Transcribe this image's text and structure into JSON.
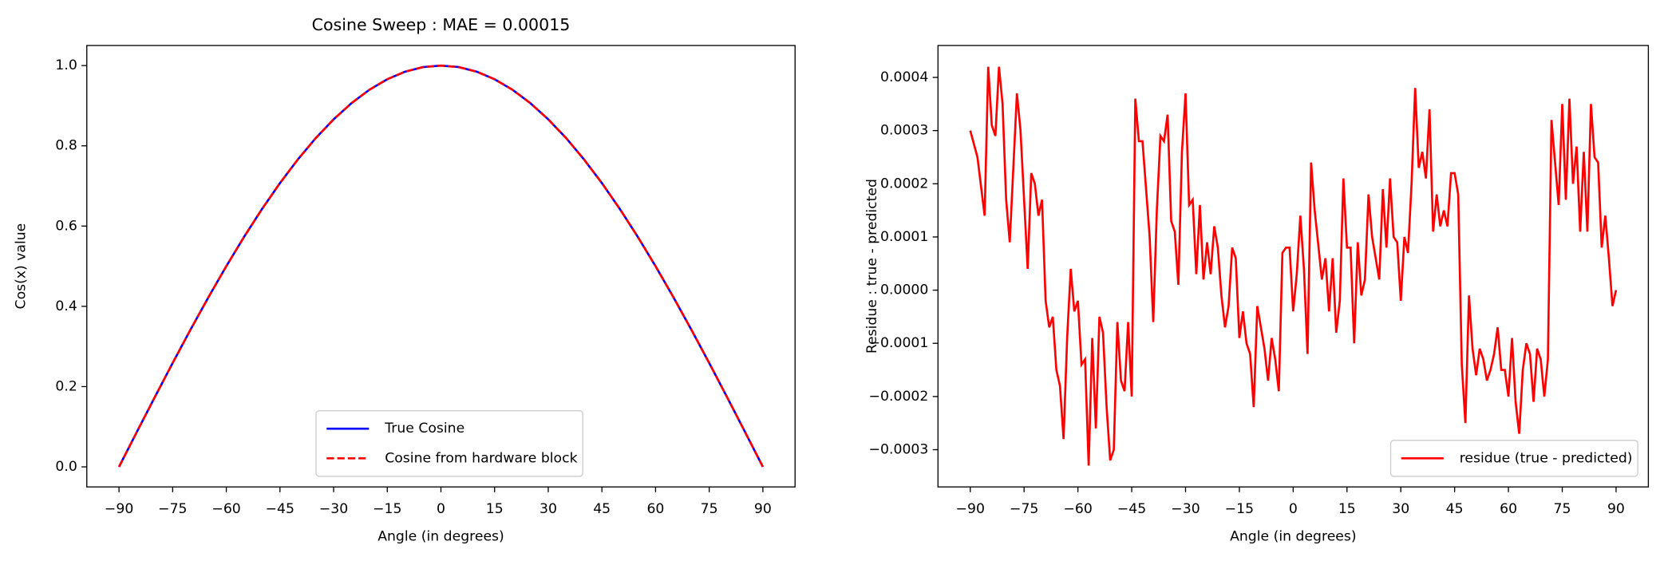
{
  "chart_data": [
    {
      "type": "line",
      "title": "Cosine Sweep : MAE = 0.00015",
      "x_label": "Angle (in degrees)",
      "y_label": "Cos(x) value",
      "x": [
        -90,
        -85,
        -80,
        -75,
        -70,
        -65,
        -60,
        -55,
        -50,
        -45,
        -40,
        -35,
        -30,
        -25,
        -20,
        -15,
        -10,
        -5,
        0,
        5,
        10,
        15,
        20,
        25,
        30,
        35,
        40,
        45,
        50,
        55,
        60,
        65,
        70,
        75,
        80,
        85,
        90
      ],
      "series": [
        {
          "name": "True Cosine",
          "color": "#0000ff",
          "dash": false,
          "values": [
            0,
            0.0872,
            0.1736,
            0.2588,
            0.342,
            0.4226,
            0.5,
            0.5736,
            0.6428,
            0.7071,
            0.766,
            0.8192,
            0.866,
            0.9063,
            0.9397,
            0.9659,
            0.9848,
            0.9962,
            1,
            0.9962,
            0.9848,
            0.9659,
            0.9397,
            0.9063,
            0.866,
            0.8192,
            0.766,
            0.7071,
            0.6428,
            0.5736,
            0.5,
            0.4226,
            0.342,
            0.2588,
            0.1736,
            0.0872,
            0
          ]
        },
        {
          "name": "Cosine from hardware block",
          "color": "#ff0000",
          "dash": true,
          "values": [
            0,
            0.0872,
            0.1736,
            0.2588,
            0.342,
            0.4226,
            0.5,
            0.5736,
            0.6428,
            0.7071,
            0.766,
            0.8192,
            0.866,
            0.9063,
            0.9397,
            0.9659,
            0.9848,
            0.9962,
            1,
            0.9962,
            0.9848,
            0.9659,
            0.9397,
            0.9063,
            0.866,
            0.8192,
            0.766,
            0.7071,
            0.6428,
            0.5736,
            0.5,
            0.4226,
            0.342,
            0.2588,
            0.1736,
            0.0872,
            0
          ]
        }
      ],
      "xlim": [
        -99,
        99
      ],
      "ylim": [
        -0.05,
        1.05
      ],
      "xticks": [
        {
          "value": -90,
          "label": "−90"
        },
        {
          "value": -75,
          "label": "−75"
        },
        {
          "value": -60,
          "label": "−60"
        },
        {
          "value": -45,
          "label": "−45"
        },
        {
          "value": -30,
          "label": "−30"
        },
        {
          "value": -15,
          "label": "−15"
        },
        0,
        15,
        30,
        45,
        60,
        75,
        90
      ],
      "yticks": [
        {
          "value": 0,
          "label": "0.0"
        },
        0.2,
        0.4,
        0.6,
        0.8,
        {
          "value": 1,
          "label": "1.0"
        }
      ],
      "legend": "lower center"
    },
    {
      "type": "line",
      "x_label": "Angle (in degrees)",
      "y_label": "Residue : true - predicted",
      "x": [
        -90,
        -88,
        -86,
        -85,
        -84,
        -83,
        -82,
        -81,
        -80,
        -79,
        -77,
        -76,
        -74,
        -73,
        -72,
        -71,
        -70,
        -69,
        -68,
        -67,
        -66,
        -65,
        -64,
        -63,
        -62,
        -61,
        -60,
        -59,
        -58,
        -57,
        -56,
        -55,
        -54,
        -53,
        -52,
        -51,
        -50,
        -49,
        -48,
        -47,
        -46,
        -45,
        -44,
        -43,
        -42,
        -40,
        -39,
        -38,
        -37,
        -36,
        -35,
        -34,
        -33,
        -32,
        -31,
        -30,
        -29,
        -28,
        -27,
        -26,
        -25,
        -24,
        -23,
        -22,
        -21,
        -20,
        -19,
        -18,
        -17,
        -16,
        -15,
        -14,
        -13,
        -12,
        -11,
        -10,
        -9,
        -8,
        -7,
        -6,
        -5,
        -4,
        -3,
        -2,
        -1,
        0,
        1,
        2,
        3,
        4,
        5,
        6,
        8,
        9,
        10,
        11,
        12,
        13,
        14,
        15,
        16,
        17,
        18,
        19,
        20,
        21,
        22,
        23,
        24,
        25,
        26,
        27,
        28,
        29,
        30,
        31,
        32,
        33,
        34,
        35,
        36,
        37,
        38,
        39,
        40,
        41,
        42,
        43,
        44,
        45,
        46,
        47,
        48,
        49,
        50,
        51,
        52,
        53,
        54,
        55,
        56,
        57,
        58,
        59,
        60,
        61,
        62,
        63,
        64,
        65,
        66,
        67,
        68,
        69,
        70,
        71,
        72,
        73,
        74,
        75,
        76,
        77,
        78,
        79,
        80,
        81,
        82,
        83,
        84,
        85,
        86,
        87,
        88,
        89,
        90
      ],
      "series": [
        {
          "name": "residue (true - predicted)",
          "color": "#ff0000",
          "dash": false,
          "values": [
            0.0003,
            0.00025,
            0.00014,
            0.00042,
            0.00031,
            0.00029,
            0.00042,
            0.00035,
            0.00017,
            9e-05,
            0.00037,
            0.0003,
            4e-05,
            0.00022,
            0.0002,
            0.00014,
            0.00017,
            -2e-05,
            -7e-05,
            -5e-05,
            -0.00015,
            -0.00018,
            -0.00028,
            -9e-05,
            4e-05,
            -4e-05,
            -2e-05,
            -0.00014,
            -0.00013,
            -0.00033,
            -9e-05,
            -0.00026,
            -5e-05,
            -8e-05,
            -0.00022,
            -0.00032,
            -0.0003,
            -6e-05,
            -0.00017,
            -0.00019,
            -6e-05,
            -0.0002,
            0.00036,
            0.00028,
            0.00028,
            0.0001,
            -6e-05,
            0.00015,
            0.00029,
            0.00028,
            0.00033,
            0.00013,
            0.00011,
            1e-05,
            0.00026,
            0.00037,
            0.00016,
            0.00017,
            3e-05,
            0.00016,
            2e-05,
            9e-05,
            3e-05,
            0.00012,
            8e-05,
            -1e-05,
            -7e-05,
            -3e-05,
            8e-05,
            6e-05,
            -9e-05,
            -4e-05,
            -0.0001,
            -0.00012,
            -0.00022,
            -3e-05,
            -7e-05,
            -0.00011,
            -0.00017,
            -9e-05,
            -0.00013,
            -0.00019,
            7e-05,
            8e-05,
            8e-05,
            -4e-05,
            3e-05,
            0.00014,
            4e-05,
            -0.00012,
            0.00024,
            0.00015,
            2e-05,
            6e-05,
            -4e-05,
            6e-05,
            -8e-05,
            -2e-05,
            0.00021,
            8e-05,
            8e-05,
            -0.0001,
            9e-05,
            -1e-05,
            2e-05,
            0.00018,
            0.0001,
            6e-05,
            2e-05,
            0.00019,
            8e-05,
            0.00021,
            0.0001,
            9e-05,
            -2e-05,
            0.0001,
            7e-05,
            0.0002,
            0.00038,
            0.00023,
            0.00026,
            0.00021,
            0.00034,
            0.00011,
            0.00018,
            0.00012,
            0.00015,
            0.00012,
            0.00022,
            0.00022,
            0.00018,
            -0.00014,
            -0.00025,
            -1e-05,
            -0.00011,
            -0.00016,
            -0.00011,
            -0.00013,
            -0.00017,
            -0.00015,
            -0.00012,
            -7e-05,
            -0.00015,
            -0.00015,
            -0.0002,
            -9e-05,
            -0.00021,
            -0.00027,
            -0.00015,
            -0.0001,
            -0.00012,
            -0.00021,
            -0.00011,
            -0.00013,
            -0.0002,
            -0.00013,
            0.00032,
            0.00024,
            0.00016,
            0.00035,
            0.00017,
            0.00036,
            0.0002,
            0.00027,
            0.00011,
            0.00026,
            0.00011,
            0.00035,
            0.00025,
            0.00024,
            8e-05,
            0.00014,
            6e-05,
            -3e-05,
            0
          ]
        }
      ],
      "xlim": [
        -99,
        99
      ],
      "ylim": [
        -0.00037,
        0.00046
      ],
      "xticks": [
        {
          "value": -90,
          "label": "−90"
        },
        {
          "value": -75,
          "label": "−75"
        },
        {
          "value": -60,
          "label": "−60"
        },
        {
          "value": -45,
          "label": "−45"
        },
        {
          "value": -30,
          "label": "−30"
        },
        {
          "value": -15,
          "label": "−15"
        },
        0,
        15,
        30,
        45,
        60,
        75,
        90
      ],
      "yticks": [
        {
          "value": -0.0003,
          "label": "−0.0003"
        },
        {
          "value": -0.0002,
          "label": "−0.0002"
        },
        {
          "value": -0.0001,
          "label": "−0.0001"
        },
        {
          "value": 0,
          "label": "0.0000"
        },
        0.0001,
        0.0002,
        0.0003,
        0.0004
      ],
      "legend": "lower right"
    }
  ]
}
